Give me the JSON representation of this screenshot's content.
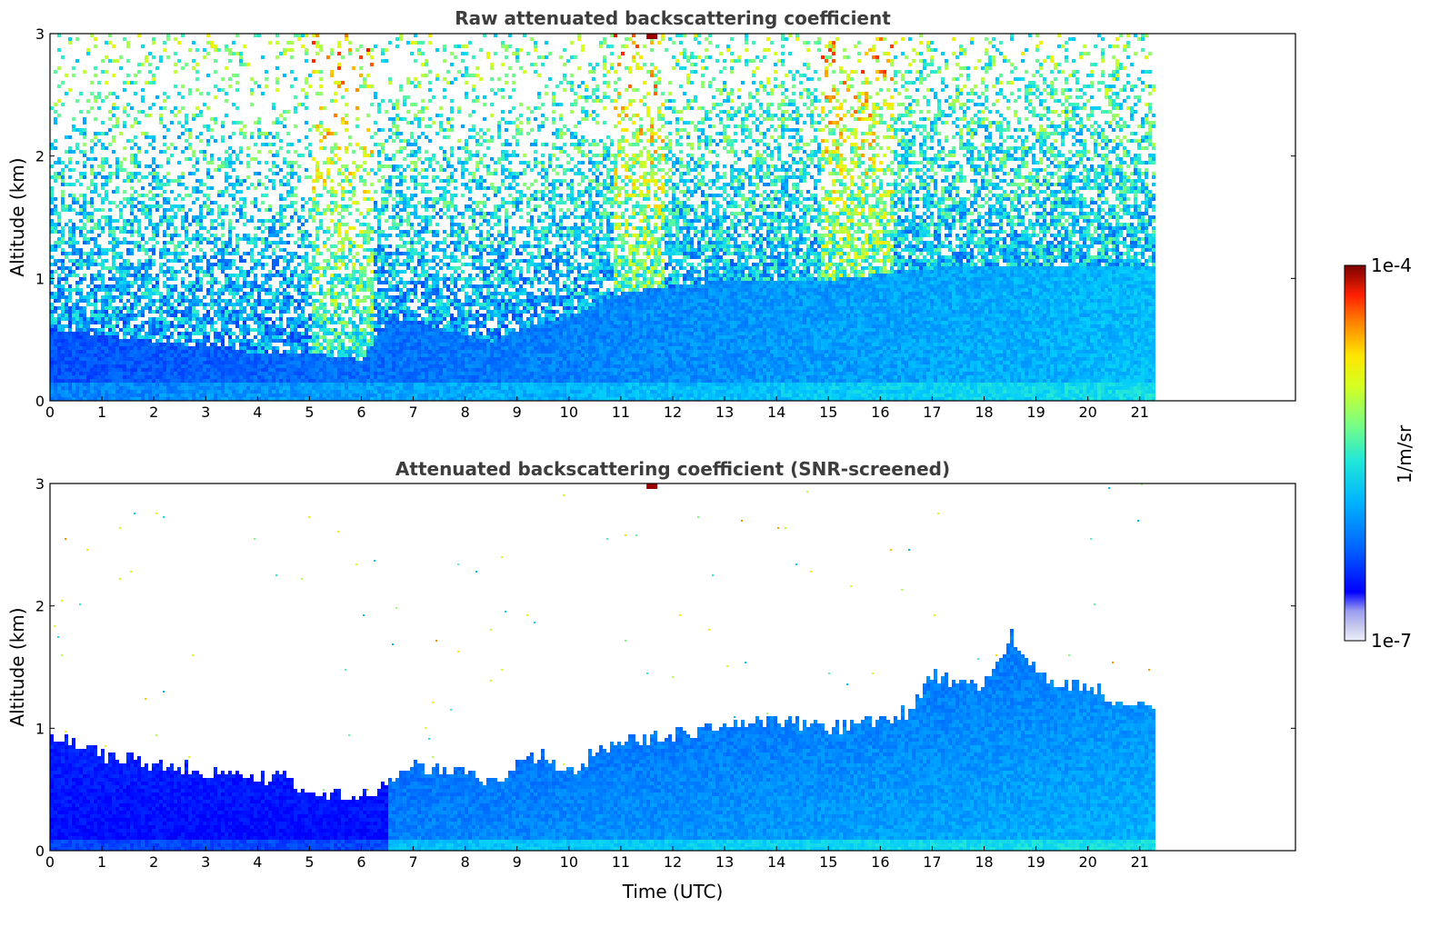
{
  "chart_data": [
    {
      "type": "heatmap",
      "title": "Raw attenuated backscattering coefficient",
      "xlabel": "",
      "ylabel": "Altitude (km)",
      "xlim": [
        0,
        24
      ],
      "ylim": [
        0,
        3
      ],
      "xticks": [
        "0",
        "1",
        "2",
        "3",
        "4",
        "5",
        "6",
        "7",
        "8",
        "9",
        "10",
        "11",
        "12",
        "13",
        "14",
        "15",
        "16",
        "17",
        "18",
        "19",
        "20",
        "21"
      ],
      "yticks": [
        "0",
        "1",
        "2",
        "3"
      ],
      "data_extent_hours": [
        0,
        21.3
      ],
      "layers": [
        {
          "layer": "aerosol/boundary layer (dense)",
          "time_utc": [
            0,
            1,
            2,
            3,
            4,
            5,
            6,
            6.5,
            7,
            8,
            8.5,
            9,
            10,
            11,
            12,
            13,
            14,
            15,
            16,
            17,
            18,
            19,
            20,
            21,
            21.3
          ],
          "top_km": [
            0.6,
            0.55,
            0.5,
            0.45,
            0.4,
            0.4,
            0.35,
            0.7,
            0.65,
            0.55,
            0.5,
            0.6,
            0.7,
            0.9,
            0.95,
            1.0,
            1.0,
            1.0,
            1.05,
            1.1,
            1.1,
            1.1,
            1.1,
            1.1,
            1.1
          ]
        },
        {
          "layer": "noise region (sparse, high-altitude)",
          "altitude_km": [
            1.0,
            3.0
          ]
        }
      ],
      "notable": [
        {
          "time_utc": 11.6,
          "altitude_km": 3.0,
          "level": "high (~1e-4)"
        }
      ]
    },
    {
      "type": "heatmap",
      "title": "Attenuated backscattering coefficient (SNR-screened)",
      "xlabel": "Time (UTC)",
      "ylabel": "Altitude (km)",
      "xlim": [
        0,
        24
      ],
      "ylim": [
        0,
        3
      ],
      "xticks": [
        "0",
        "1",
        "2",
        "3",
        "4",
        "5",
        "6",
        "7",
        "8",
        "9",
        "10",
        "11",
        "12",
        "13",
        "14",
        "15",
        "16",
        "17",
        "18",
        "19",
        "20",
        "21"
      ],
      "yticks": [
        "0",
        "1",
        "2",
        "3"
      ],
      "data_extent_hours": [
        0,
        21.3
      ],
      "boundary_layer_top": {
        "time_utc": [
          0,
          0.5,
          1,
          1.5,
          2,
          3,
          4,
          4.5,
          5,
          5.5,
          6,
          6.5,
          7,
          8,
          8.5,
          9,
          9.5,
          10,
          10.5,
          11,
          12,
          13,
          14,
          15,
          16,
          16.5,
          17,
          17.5,
          18,
          18.5,
          19,
          19.5,
          20,
          20.5,
          21,
          21.3
        ],
        "top_km": [
          0.95,
          0.88,
          0.8,
          0.78,
          0.72,
          0.66,
          0.62,
          0.62,
          0.47,
          0.46,
          0.46,
          0.55,
          0.72,
          0.65,
          0.58,
          0.72,
          0.8,
          0.65,
          0.83,
          0.9,
          0.97,
          1.03,
          1.07,
          1.02,
          1.08,
          1.15,
          1.45,
          1.38,
          1.38,
          1.78,
          1.45,
          1.38,
          1.35,
          1.25,
          1.25,
          1.2
        ]
      },
      "notable": [
        {
          "time_utc": 11.6,
          "altitude_km": 3.0,
          "level": "high (~1e-4)"
        }
      ]
    }
  ],
  "colorbar": {
    "label": "1/m/sr",
    "max_label": "1e-4",
    "min_label": "1e-7",
    "scale": "log",
    "colormap": "jet",
    "colors": [
      "#eef0fb",
      "#c4c6ee",
      "#9a9cf0",
      "#0000ff",
      "#0044ff",
      "#0088ff",
      "#00c8ff",
      "#20e8c8",
      "#7dff80",
      "#d6ff20",
      "#ffe600",
      "#ff9a00",
      "#ff3000",
      "#c00000",
      "#7a0000"
    ]
  },
  "colors": {
    "frame": "#000000",
    "title": "#3d3d3d"
  }
}
